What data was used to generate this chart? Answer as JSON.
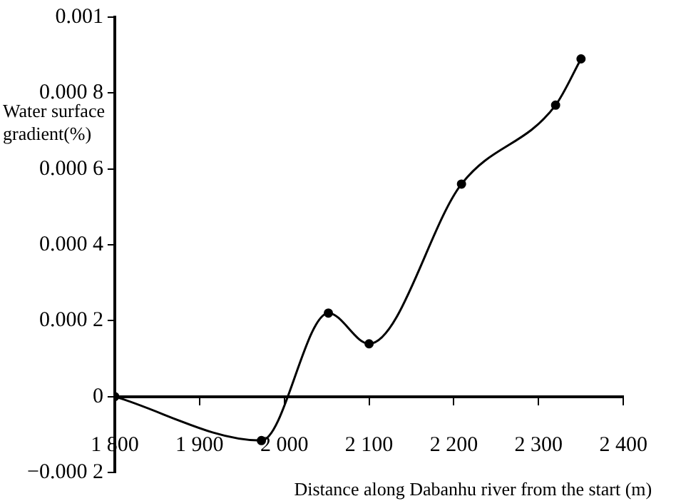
{
  "chart_data": {
    "type": "line",
    "xlabel": "Distance along Dabanhu river from the start (m)",
    "ylabel": "Water surface gradient(%)",
    "x": [
      1800,
      1973,
      2052,
      2100,
      2209,
      2320,
      2350
    ],
    "series": [
      {
        "color": "#000000",
        "values": [
          0,
          -0.000116,
          0.00022,
          0.000139,
          0.00056,
          0.000768,
          0.00089
        ]
      }
    ],
    "xlim": [
      1800,
      2400
    ],
    "xticks": [
      {
        "value": 1800,
        "label": "1 800"
      },
      {
        "value": 1900,
        "label": "1 900"
      },
      {
        "value": 2000,
        "label": "2 000"
      },
      {
        "value": 2100,
        "label": "2 100"
      },
      {
        "value": 2200,
        "label": "2 200"
      },
      {
        "value": 2300,
        "label": "2 300"
      },
      {
        "value": 2400,
        "label": "2 400"
      }
    ],
    "ylim": [
      -0.0002,
      0.001
    ],
    "yticks": [
      {
        "value": -0.0002,
        "label": "−0.000 2"
      },
      0,
      {
        "value": 0.0002,
        "label": "0.000 2"
      },
      {
        "value": 0.0004,
        "label": "0.000 4"
      },
      {
        "value": 0.0006,
        "label": "0.000 6"
      },
      {
        "value": 0.0008,
        "label": "0.000 8"
      },
      0.001
    ],
    "grid": false,
    "legend": false,
    "marker": "circle",
    "line_style": "solid"
  }
}
